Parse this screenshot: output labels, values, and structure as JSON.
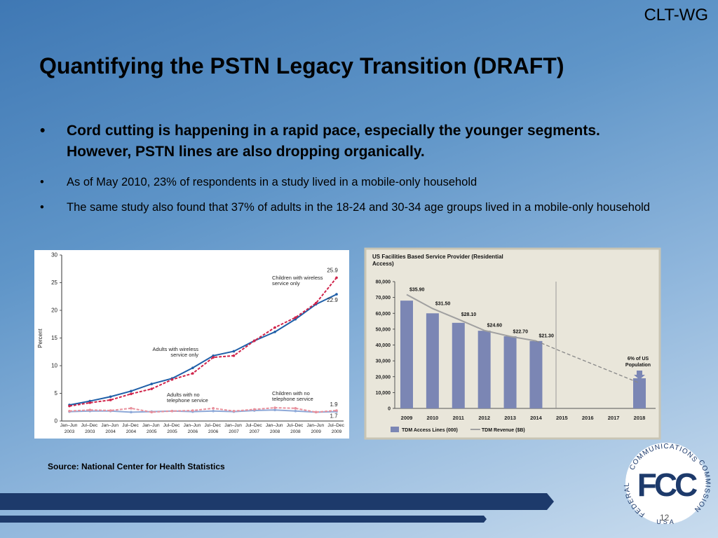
{
  "header": "CLT-WG",
  "title": "Quantifying the PSTN Legacy Transition (DRAFT)",
  "bullets": [
    {
      "text": "Cord cutting is happening in a rapid pace, especially the younger segments. However, PSTN lines are also dropping organically.",
      "bold": true
    },
    {
      "text": "As of May 2010,  23% of respondents in a study lived in a mobile-only household",
      "bold": false
    },
    {
      "text": "The same study also found that 37% of adults in the 18-24 and 30-34 age groups lived in a mobile-only household",
      "bold": false
    }
  ],
  "source": "Source: National Center for Health Statistics",
  "page_number": "12",
  "logo": {
    "top": "COMMUNICATIONS",
    "right": "COMMISSION",
    "left": "FEDERAL",
    "center": "FCC",
    "bottom": "USA"
  },
  "chart_data": [
    {
      "type": "line",
      "ylabel": "Percent",
      "categories": [
        "Jan–Jun 2003",
        "Jul–Dec 2003",
        "Jan–Jun 2004",
        "Jul–Dec 2004",
        "Jan–Jun 2005",
        "Jul–Dec 2005",
        "Jan–Jun 2006",
        "Jul–Dec 2006",
        "Jan–Jun 2007",
        "Jul–Dec 2007",
        "Jan–Jun 2008",
        "Jul–Dec 2008",
        "Jan–Jun 2009",
        "Jul–Dec 2009"
      ],
      "series": [
        {
          "name": "Adults with wireless service only",
          "color": "#1f5fa8",
          "dash": false,
          "values": [
            2.9,
            3.6,
            4.4,
            5.4,
            6.7,
            7.7,
            9.6,
            11.8,
            12.6,
            14.5,
            16.1,
            18.4,
            21.1,
            22.9
          ]
        },
        {
          "name": "Children with wireless service only",
          "color": "#d0234a",
          "dash": true,
          "values": [
            2.7,
            3.3,
            3.8,
            4.9,
            5.8,
            7.5,
            8.6,
            11.5,
            11.8,
            14.5,
            16.9,
            18.7,
            21.3,
            25.9
          ]
        },
        {
          "name": "Adults with no telephone service",
          "color": "#8ea9d8",
          "dash": false,
          "values": [
            1.7,
            1.8,
            1.8,
            1.6,
            1.7,
            1.8,
            1.7,
            1.8,
            1.7,
            1.9,
            2.0,
            1.8,
            1.6,
            1.7
          ]
        },
        {
          "name": "Children with no telephone service",
          "color": "#e8909c",
          "dash": true,
          "values": [
            1.8,
            2.0,
            1.9,
            2.3,
            1.6,
            1.8,
            1.9,
            2.3,
            1.8,
            2.1,
            2.4,
            2.3,
            1.6,
            1.9
          ]
        }
      ],
      "ylim": [
        0,
        30
      ],
      "yticks": [
        0,
        5,
        10,
        15,
        20,
        25,
        30
      ]
    },
    {
      "type": "bar",
      "title": "US Facilities Based Service Provider (Residential Access)",
      "annotation": "6% of US Population",
      "categories": [
        "2009",
        "2010",
        "2011",
        "2012",
        "2013",
        "2014",
        "2015",
        "2016",
        "2017",
        "2018"
      ],
      "series": [
        {
          "name": "TDM Access Lines (000)",
          "color": "#7b86b4",
          "type": "bar",
          "values": [
            68000,
            60000,
            54000,
            49000,
            45500,
            42500,
            null,
            null,
            null,
            19000
          ]
        },
        {
          "name": "TDM Revenue ($B)",
          "color": "#a0a0a0",
          "type": "line",
          "axis": "y2",
          "values": [
            35.9,
            31.5,
            28.1,
            24.6,
            22.7,
            21.3,
            17.9,
            14.6,
            11.3,
            8.0
          ],
          "value_labels": [
            "$35.90",
            "$31.50",
            "$28.10",
            "$24.60",
            "$22.70",
            "$21.30",
            null,
            null,
            null,
            null
          ]
        }
      ],
      "ylim": [
        0,
        80000
      ],
      "yticks": [
        0,
        {
          "value": 10000,
          "label": "10,000"
        },
        {
          "value": 20000,
          "label": "20,000"
        },
        {
          "value": 30000,
          "label": "30,000"
        },
        {
          "value": 40000,
          "label": "40,000"
        },
        {
          "value": 50000,
          "label": "50,000"
        },
        {
          "value": 60000,
          "label": "60,000"
        },
        {
          "value": 70000,
          "label": "70,000"
        },
        {
          "value": 80000,
          "label": "80,000"
        }
      ],
      "y2lim": [
        0,
        40
      ]
    }
  ]
}
